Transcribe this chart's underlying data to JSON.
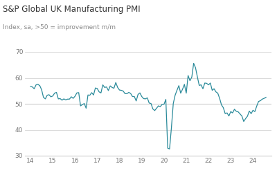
{
  "title": "S&P Global UK Manufacturing PMI",
  "subtitle": "Index, sa, >50 = improvement m/m",
  "title_color": "#333333",
  "subtitle_color": "#888888",
  "line_color": "#2a8a9a",
  "background_color": "#ffffff",
  "grid_color": "#cccccc",
  "ylim": [
    30,
    70
  ],
  "yticks": [
    30,
    40,
    50,
    60,
    70
  ],
  "xlim": [
    2013.75,
    2024.83
  ],
  "xticks": [
    14,
    15,
    16,
    17,
    18,
    19,
    20,
    21,
    22,
    23,
    24
  ],
  "x": [
    2014.0,
    2014.083,
    2014.167,
    2014.25,
    2014.333,
    2014.417,
    2014.5,
    2014.583,
    2014.667,
    2014.75,
    2014.833,
    2014.917,
    2015.0,
    2015.083,
    2015.167,
    2015.25,
    2015.333,
    2015.417,
    2015.5,
    2015.583,
    2015.667,
    2015.75,
    2015.833,
    2015.917,
    2016.0,
    2016.083,
    2016.167,
    2016.25,
    2016.333,
    2016.417,
    2016.5,
    2016.583,
    2016.667,
    2016.75,
    2016.833,
    2016.917,
    2017.0,
    2017.083,
    2017.167,
    2017.25,
    2017.333,
    2017.417,
    2017.5,
    2017.583,
    2017.667,
    2017.75,
    2017.833,
    2017.917,
    2018.0,
    2018.083,
    2018.167,
    2018.25,
    2018.333,
    2018.417,
    2018.5,
    2018.583,
    2018.667,
    2018.75,
    2018.833,
    2018.917,
    2019.0,
    2019.083,
    2019.167,
    2019.25,
    2019.333,
    2019.417,
    2019.5,
    2019.583,
    2019.667,
    2019.75,
    2019.833,
    2019.917,
    2020.0,
    2020.083,
    2020.167,
    2020.25,
    2020.333,
    2020.417,
    2020.5,
    2020.583,
    2020.667,
    2020.75,
    2020.833,
    2020.917,
    2021.0,
    2021.083,
    2021.167,
    2021.25,
    2021.333,
    2021.417,
    2021.5,
    2021.583,
    2021.667,
    2021.75,
    2021.833,
    2021.917,
    2022.0,
    2022.083,
    2022.167,
    2022.25,
    2022.333,
    2022.417,
    2022.5,
    2022.583,
    2022.667,
    2022.75,
    2022.833,
    2022.917,
    2023.0,
    2023.083,
    2023.167,
    2023.25,
    2023.333,
    2023.417,
    2023.5,
    2023.583,
    2023.667,
    2023.75,
    2023.833,
    2023.917,
    2024.0,
    2024.083,
    2024.167,
    2024.25,
    2024.333,
    2024.417,
    2024.5,
    2024.583
  ],
  "y": [
    56.7,
    56.5,
    55.8,
    57.3,
    57.5,
    57.0,
    55.4,
    52.5,
    51.9,
    53.3,
    53.5,
    52.7,
    53.0,
    54.1,
    54.4,
    51.9,
    52.0,
    51.4,
    51.9,
    51.5,
    51.8,
    51.8,
    52.7,
    52.1,
    52.9,
    54.2,
    54.3,
    49.2,
    49.7,
    50.1,
    48.3,
    53.4,
    53.3,
    54.3,
    53.4,
    56.1,
    55.9,
    54.6,
    54.2,
    57.3,
    56.3,
    56.5,
    55.1,
    56.9,
    56.3,
    56.0,
    58.2,
    56.3,
    55.3,
    55.2,
    54.9,
    53.9,
    53.9,
    54.4,
    54.0,
    52.8,
    52.8,
    51.1,
    53.6,
    54.2,
    52.8,
    52.0,
    51.9,
    52.3,
    50.3,
    50.1,
    48.0,
    47.4,
    48.3,
    49.2,
    48.9,
    49.8,
    49.8,
    51.7,
    32.9,
    32.6,
    40.7,
    50.1,
    53.3,
    55.2,
    57.0,
    54.1,
    55.6,
    57.5,
    54.1,
    60.9,
    58.9,
    60.3,
    65.6,
    63.9,
    60.4,
    57.1,
    57.3,
    55.8,
    58.0,
    57.9,
    57.3,
    58.0,
    55.2,
    55.8,
    54.6,
    54.1,
    52.1,
    49.6,
    48.5,
    46.2,
    46.5,
    45.3,
    47.0,
    46.5,
    47.9,
    47.1,
    46.9,
    46.1,
    45.3,
    43.2,
    44.3,
    45.2,
    47.2,
    46.2,
    47.5,
    47.0,
    49.1,
    50.9,
    51.2,
    51.8,
    52.1,
    52.5
  ]
}
